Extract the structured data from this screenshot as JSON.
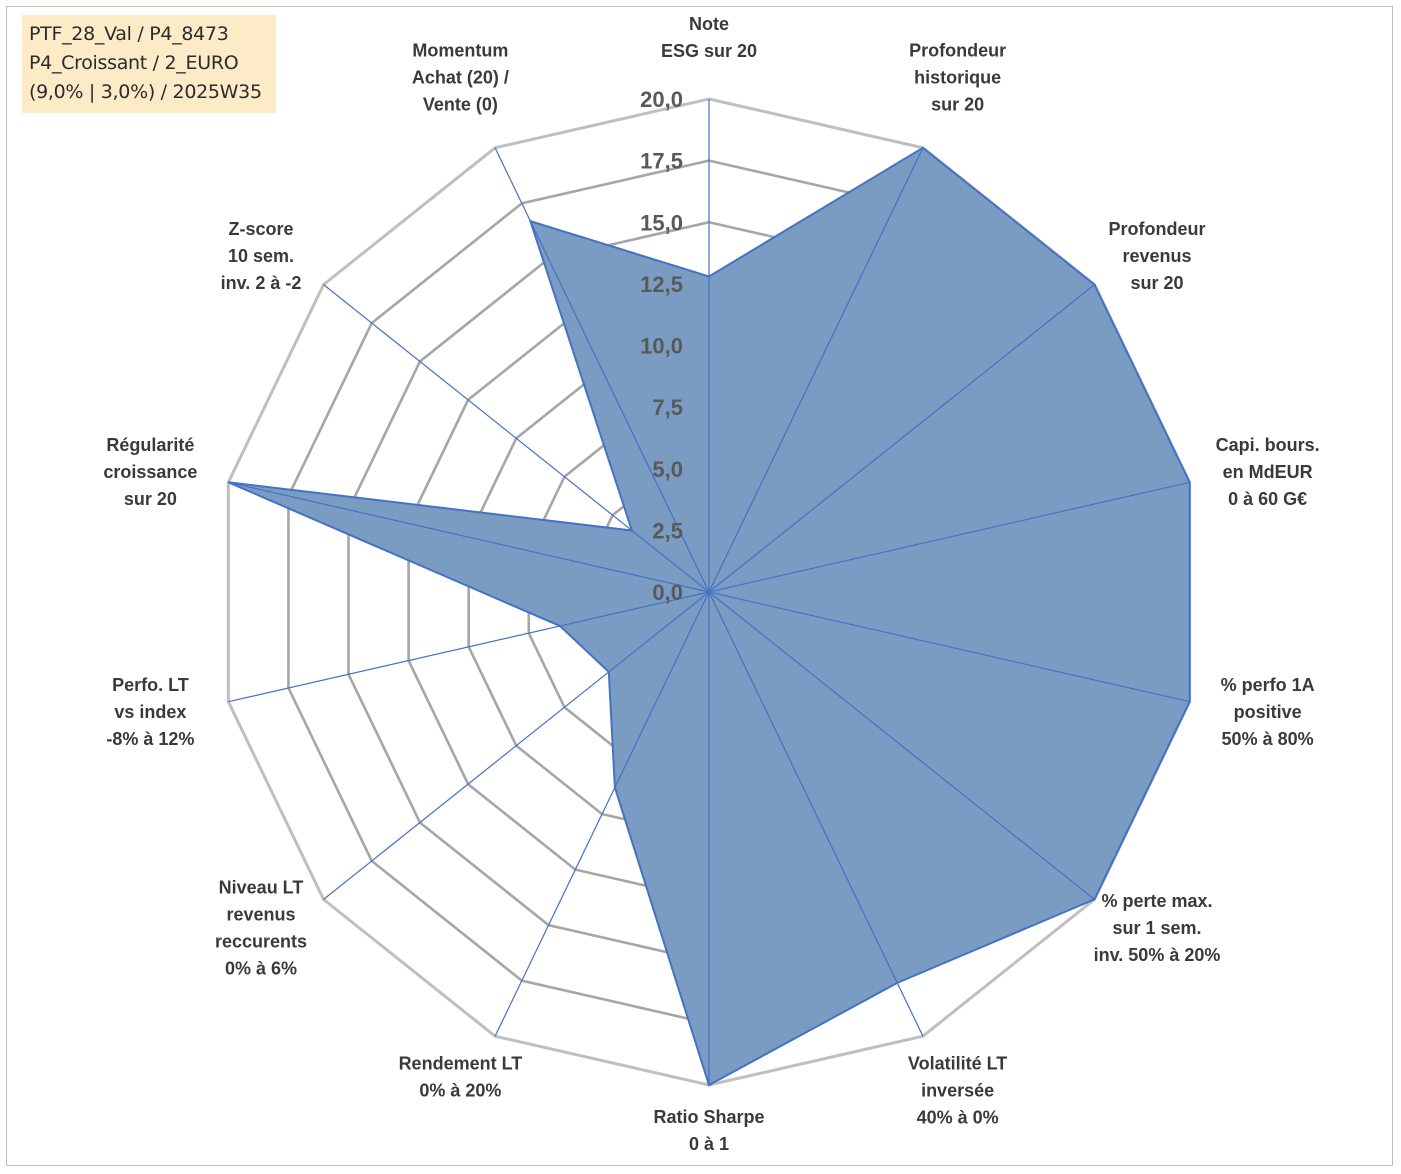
{
  "info": {
    "line1": "PTF_28_Val / P4_8473",
    "line2": "P4_Croissant / 2_EURO",
    "line3": "(9,0% | 3,0%) / 2025W35"
  },
  "chart_data": {
    "type": "radar",
    "title": "",
    "rmin": 0,
    "rmax": 20,
    "ticks": [
      "0,0",
      "2,5",
      "5,0",
      "7,5",
      "10,0",
      "12,5",
      "15,0",
      "17,5",
      "20,0"
    ],
    "tick_values": [
      0,
      2.5,
      5,
      7.5,
      10,
      12.5,
      15,
      17.5,
      20
    ],
    "categories": [
      [
        "Note",
        "ESG sur 20"
      ],
      [
        "Profondeur",
        "historique",
        "sur 20"
      ],
      [
        "Profondeur",
        "revenus",
        "sur 20"
      ],
      [
        "Capi. bours.",
        "en MdEUR",
        "0 à 60 G€"
      ],
      [
        "% perfo 1A",
        "positive",
        "50% à 80%"
      ],
      [
        "% perte max.",
        "sur 1 sem.",
        "inv. 50% à 20%"
      ],
      [
        "Volatilité LT",
        "inversée",
        "40% à 0%"
      ],
      [
        "Ratio Sharpe",
        "0 à 1"
      ],
      [
        "Rendement LT",
        "0% à 20%"
      ],
      [
        "Niveau LT",
        "revenus",
        "reccurents",
        "0% à 6%"
      ],
      [
        "Perfo. LT",
        "vs index",
        "-8% à 12%"
      ],
      [
        "Régularité",
        "croissance",
        "sur 20"
      ],
      [
        "Z-score",
        "10 sem.",
        "inv. 2 à -2"
      ],
      [
        "Momentum",
        "Achat (20) /",
        "Vente (0)"
      ]
    ],
    "series": [
      {
        "values": [
          12.8,
          20,
          20,
          20,
          20,
          20,
          17.6,
          20,
          8.8,
          5.2,
          6.2,
          20,
          4.0,
          16.7
        ]
      }
    ],
    "colors": {
      "fill": "#7a9cc2",
      "stroke": "#4472c4",
      "grid_inner": "#a6a6a6",
      "grid_outer": "#bfbfbf",
      "spoke": "#4472c4"
    },
    "grid": true,
    "legend": "none"
  }
}
